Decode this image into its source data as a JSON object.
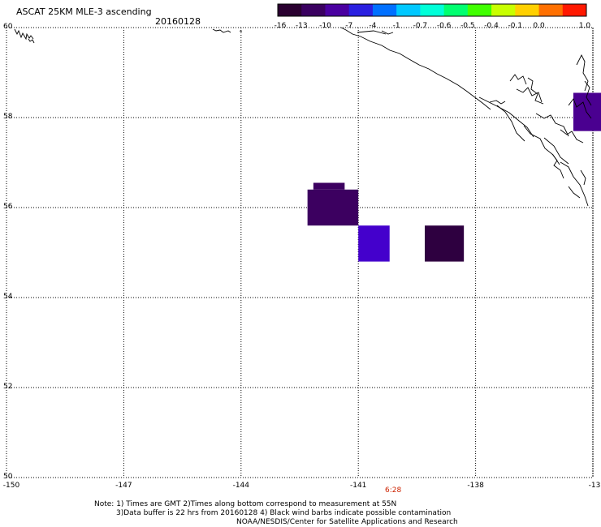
{
  "header": {
    "title": "ASCAT 25KM MLE-3 ascending",
    "date": "20160128"
  },
  "colorbar": {
    "labels": [
      "-16",
      "-13",
      "-10",
      "-7",
      "-4",
      "-1",
      "-0.7",
      "-0.6",
      "-0.5",
      "-0.4",
      "-0.1",
      "0.0",
      "1.0"
    ],
    "colors": [
      "#2a0030",
      "#3a0060",
      "#4a00a0",
      "#2a20e0",
      "#0070ff",
      "#00c8ff",
      "#00ffd8",
      "#00ff70",
      "#40ff00",
      "#c8ff00",
      "#ffd000",
      "#ff7000",
      "#ff1800"
    ]
  },
  "axes": {
    "lat_labels": [
      "60",
      "58",
      "56",
      "54",
      "52",
      "50"
    ],
    "lon_labels": [
      "-150",
      "-147",
      "-144",
      "-141",
      "-138",
      "-13"
    ]
  },
  "time_label": "6:28",
  "notes": {
    "line1": "Note: 1) Times are GMT 2)Times along bottom correspond to measurement at 55N",
    "line2": "3)Data buffer is 22 hrs from 20160128 4) Black wind barbs indicate possible contamination",
    "line3": "NOAA/NESDIS/Center for Satellite Applications and Research"
  },
  "data_cells": [
    {
      "lat_min": 57.7,
      "lat_max": 58.55,
      "lon_min": -135.5,
      "lon_max": -134.7,
      "color": "#4a0090"
    },
    {
      "lat_min": 55.6,
      "lat_max": 56.4,
      "lon_min": -142.3,
      "lon_max": -141.0,
      "color": "#3c0060"
    },
    {
      "lat_min": 56.4,
      "lat_max": 56.55,
      "lon_min": -142.15,
      "lon_max": -141.35,
      "color": "#3c0060"
    },
    {
      "lat_min": 54.8,
      "lat_max": 55.6,
      "lon_min": -141.0,
      "lon_max": -140.2,
      "color": "#4400cc"
    },
    {
      "lat_min": 54.8,
      "lat_max": 55.6,
      "lon_min": -139.3,
      "lon_max": -138.3,
      "color": "#2e0040"
    }
  ]
}
